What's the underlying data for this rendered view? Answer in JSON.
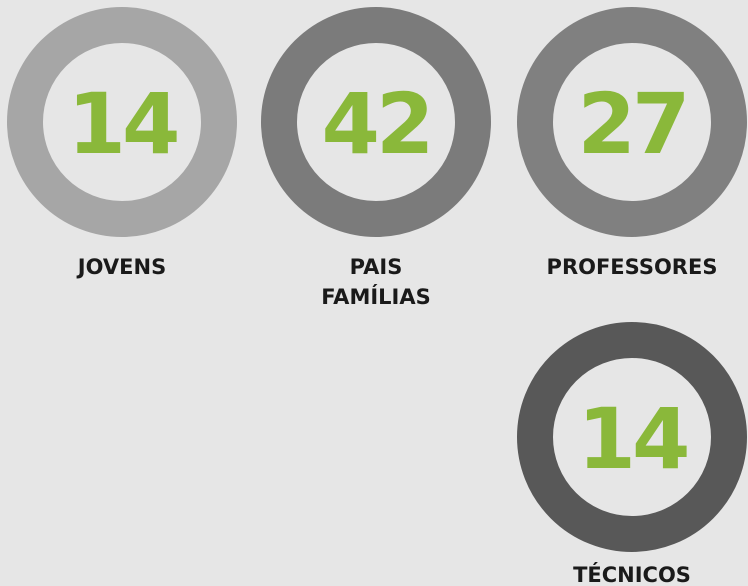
{
  "items": [
    {
      "value": 14,
      "label": [
        "JOVENS"
      ],
      "color": "#a6a6a6"
    },
    {
      "value": 42,
      "label": [
        "PAIS",
        "FAMÍLIAS"
      ],
      "color": "#7b7b7b"
    },
    {
      "value": 27,
      "label": [
        "PROFESSORES"
      ],
      "color": "#808080"
    },
    {
      "value": 14,
      "label": [
        "TÉCNICOS"
      ],
      "color": "#585858"
    }
  ],
  "number_color": "#8ab83a"
}
